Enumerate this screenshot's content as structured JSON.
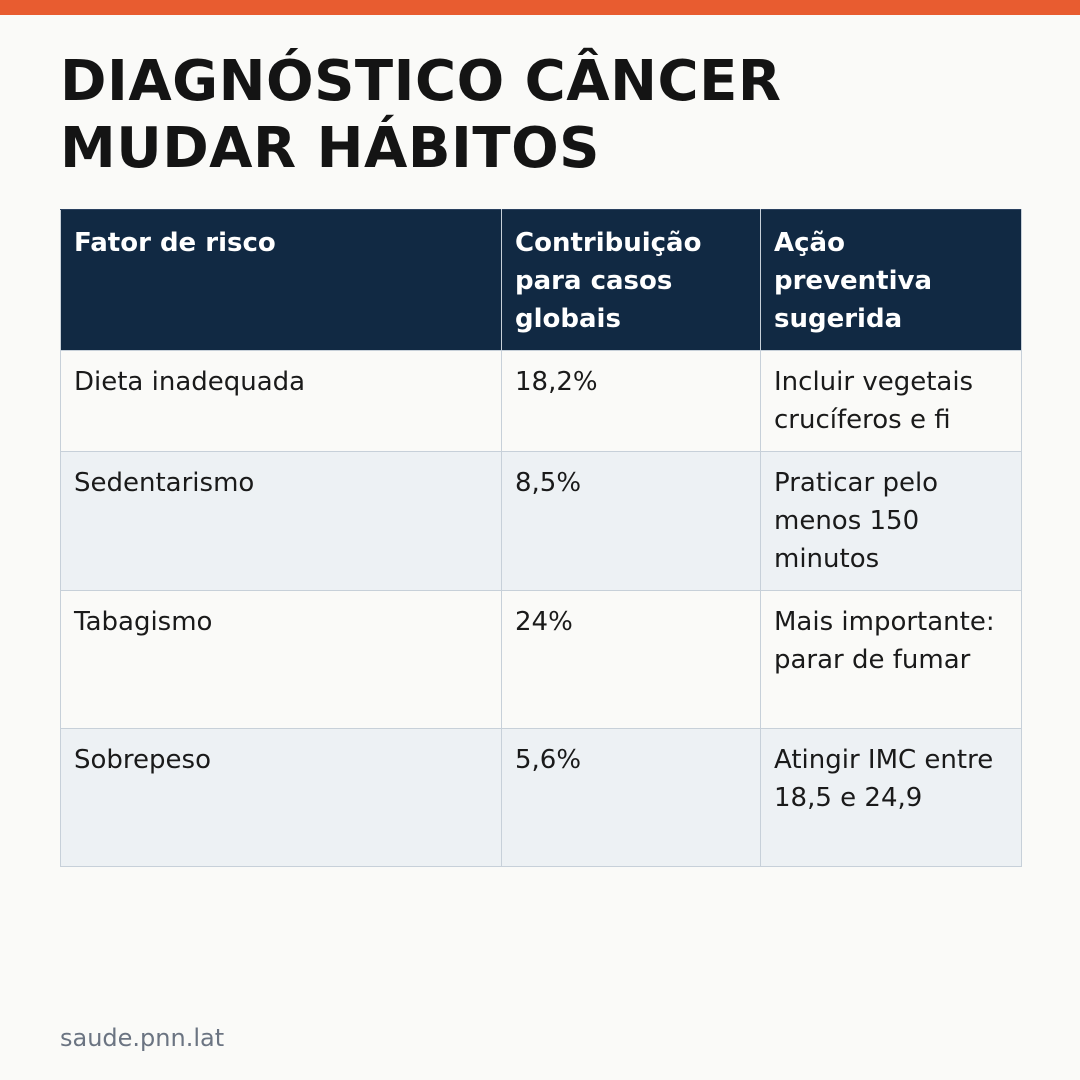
{
  "title": {
    "line1": "DIAGNÓSTICO CÂNCER",
    "line2": "MUDAR HÁBITOS"
  },
  "table": {
    "headers": [
      "Fator de risco",
      "Contribuição para casos globais",
      "Ação preventiva sugerida"
    ],
    "rows": [
      [
        "Dieta inadequada",
        "18,2%",
        "Incluir vegetais crucíferos e fi"
      ],
      [
        "Sedentarismo",
        "8,5%",
        "Praticar pelo menos 150 minutos"
      ],
      [
        "Tabagismo",
        "24%",
        "Mais importante: parar de fumar"
      ],
      [
        "Sobrepeso",
        "5,6%",
        "Atingir IMC entre 18,5 e 24,9"
      ]
    ]
  },
  "footer": {
    "source": "saude.pnn.lat"
  },
  "colors": {
    "accent_bar": "#e85c30",
    "header_bg": "#112943"
  }
}
